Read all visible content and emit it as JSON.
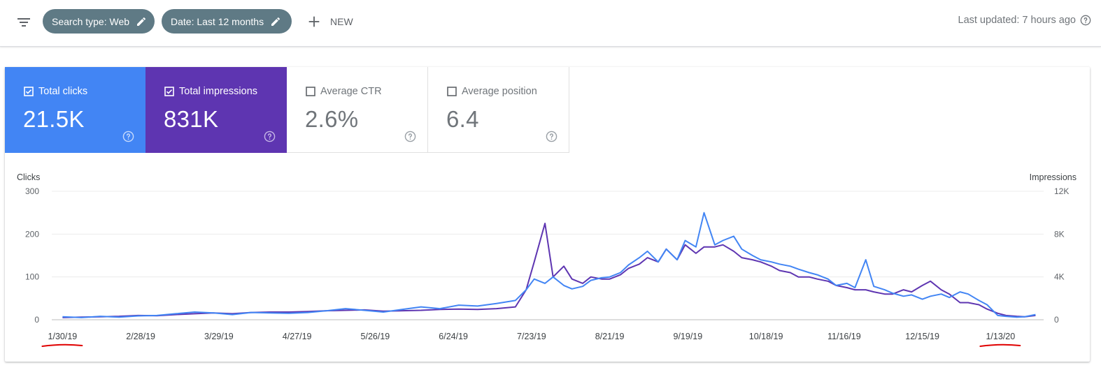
{
  "toolbar": {
    "filter_icon": "filter-list-icon",
    "chips": [
      {
        "label": "Search type: Web",
        "icon": "edit-pencil-icon"
      },
      {
        "label": "Date: Last 12 months",
        "icon": "edit-pencil-icon"
      }
    ],
    "new_label": "NEW",
    "last_updated": "Last updated: 7 hours ago"
  },
  "metrics": [
    {
      "label": "Total clicks",
      "value": "21.5K",
      "checked": true,
      "color": "#4285f4"
    },
    {
      "label": "Total impressions",
      "value": "831K",
      "checked": true,
      "color": "#5e35b1"
    },
    {
      "label": "Average CTR",
      "value": "2.6%",
      "checked": false
    },
    {
      "label": "Average position",
      "value": "6.4",
      "checked": false
    }
  ],
  "chart_data": {
    "type": "line",
    "ylabel": "Clicks",
    "y2label": "Impressions",
    "ylim": [
      0,
      300
    ],
    "y2lim": [
      0,
      12000
    ],
    "y_ticks": [
      "0",
      "100",
      "200",
      "300"
    ],
    "y2_ticks": [
      "0",
      "4K",
      "8K",
      "12K"
    ],
    "x_tick_labels": [
      "1/30/19",
      "2/28/19",
      "3/29/19",
      "4/27/19",
      "5/26/19",
      "6/24/19",
      "7/23/19",
      "8/21/19",
      "9/19/19",
      "10/18/19",
      "11/16/19",
      "12/15/19",
      "1/13/20"
    ],
    "underlined_ticks": [
      "1/30/19",
      "1/13/20"
    ],
    "grid": true,
    "series": [
      {
        "name": "Clicks",
        "axis": "left",
        "color": "#4285f4",
        "x": [
          "2019-01-30",
          "2019-02-06",
          "2019-02-13",
          "2019-02-20",
          "2019-02-27",
          "2019-03-06",
          "2019-03-13",
          "2019-03-20",
          "2019-03-27",
          "2019-04-03",
          "2019-04-10",
          "2019-04-17",
          "2019-04-24",
          "2019-05-01",
          "2019-05-08",
          "2019-05-15",
          "2019-05-22",
          "2019-05-29",
          "2019-06-05",
          "2019-06-12",
          "2019-06-19",
          "2019-06-26",
          "2019-07-03",
          "2019-07-10",
          "2019-07-17",
          "2019-07-21",
          "2019-07-24",
          "2019-07-28",
          "2019-07-31",
          "2019-08-04",
          "2019-08-07",
          "2019-08-11",
          "2019-08-14",
          "2019-08-18",
          "2019-08-21",
          "2019-08-25",
          "2019-08-28",
          "2019-09-01",
          "2019-09-04",
          "2019-09-08",
          "2019-09-11",
          "2019-09-15",
          "2019-09-18",
          "2019-09-22",
          "2019-09-25",
          "2019-09-29",
          "2019-10-02",
          "2019-10-06",
          "2019-10-09",
          "2019-10-13",
          "2019-10-16",
          "2019-10-20",
          "2019-10-23",
          "2019-10-27",
          "2019-10-30",
          "2019-11-03",
          "2019-11-06",
          "2019-11-10",
          "2019-11-13",
          "2019-11-17",
          "2019-11-20",
          "2019-11-24",
          "2019-11-27",
          "2019-12-01",
          "2019-12-04",
          "2019-12-08",
          "2019-12-11",
          "2019-12-15",
          "2019-12-18",
          "2019-12-22",
          "2019-12-25",
          "2019-12-29",
          "2020-01-01",
          "2020-01-05",
          "2020-01-08",
          "2020-01-12",
          "2020-01-15",
          "2020-01-19",
          "2020-01-22",
          "2020-01-26"
        ],
        "values": [
          7,
          5,
          8,
          6,
          9,
          10,
          14,
          18,
          16,
          12,
          17,
          16,
          15,
          17,
          21,
          26,
          22,
          18,
          24,
          30,
          26,
          34,
          32,
          38,
          45,
          70,
          95,
          85,
          100,
          80,
          72,
          78,
          92,
          98,
          100,
          110,
          128,
          145,
          160,
          135,
          165,
          140,
          185,
          170,
          250,
          175,
          185,
          195,
          165,
          150,
          140,
          135,
          130,
          125,
          118,
          110,
          105,
          95,
          80,
          85,
          75,
          140,
          78,
          70,
          62,
          55,
          58,
          48,
          55,
          60,
          52,
          65,
          60,
          45,
          35,
          10,
          8,
          6,
          7,
          12
        ]
      },
      {
        "name": "Impressions",
        "axis": "right",
        "color": "#5e35b1",
        "x": [
          "2019-01-30",
          "2019-02-06",
          "2019-02-13",
          "2019-02-20",
          "2019-02-27",
          "2019-03-06",
          "2019-03-13",
          "2019-03-20",
          "2019-03-27",
          "2019-04-03",
          "2019-04-10",
          "2019-04-17",
          "2019-04-24",
          "2019-05-01",
          "2019-05-08",
          "2019-05-15",
          "2019-05-22",
          "2019-05-29",
          "2019-06-05",
          "2019-06-12",
          "2019-06-19",
          "2019-06-26",
          "2019-07-03",
          "2019-07-10",
          "2019-07-17",
          "2019-07-21",
          "2019-07-24",
          "2019-07-28",
          "2019-07-31",
          "2019-08-04",
          "2019-08-07",
          "2019-08-11",
          "2019-08-14",
          "2019-08-18",
          "2019-08-21",
          "2019-08-25",
          "2019-08-28",
          "2019-09-01",
          "2019-09-04",
          "2019-09-08",
          "2019-09-11",
          "2019-09-15",
          "2019-09-18",
          "2019-09-22",
          "2019-09-25",
          "2019-09-29",
          "2019-10-02",
          "2019-10-06",
          "2019-10-09",
          "2019-10-13",
          "2019-10-16",
          "2019-10-20",
          "2019-10-23",
          "2019-10-27",
          "2019-10-30",
          "2019-11-03",
          "2019-11-06",
          "2019-11-10",
          "2019-11-13",
          "2019-11-17",
          "2019-11-20",
          "2019-11-24",
          "2019-11-27",
          "2019-12-01",
          "2019-12-04",
          "2019-12-08",
          "2019-12-11",
          "2019-12-15",
          "2019-12-18",
          "2019-12-22",
          "2019-12-25",
          "2019-12-29",
          "2020-01-01",
          "2020-01-05",
          "2020-01-08",
          "2020-01-12",
          "2020-01-15",
          "2020-01-19",
          "2020-01-22",
          "2020-01-26"
        ],
        "values": [
          200,
          240,
          280,
          320,
          400,
          380,
          480,
          560,
          640,
          560,
          680,
          720,
          720,
          760,
          840,
          880,
          920,
          800,
          840,
          880,
          960,
          1000,
          960,
          1040,
          1200,
          2800,
          5400,
          9000,
          4000,
          5000,
          3800,
          3400,
          4000,
          3800,
          3800,
          4200,
          4800,
          5200,
          5800,
          5400,
          6600,
          5600,
          7000,
          6200,
          6800,
          6800,
          7000,
          6400,
          5800,
          5600,
          5400,
          5000,
          4600,
          4400,
          4000,
          4000,
          3800,
          3600,
          3200,
          3000,
          2800,
          2800,
          2600,
          2400,
          2400,
          2800,
          2600,
          3200,
          3600,
          2800,
          2400,
          1600,
          1600,
          1400,
          1000,
          600,
          400,
          320,
          280,
          400
        ]
      }
    ]
  }
}
